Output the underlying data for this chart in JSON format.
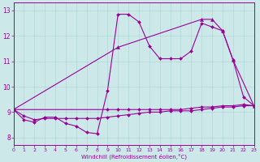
{
  "xlabel": "Windchill (Refroidissement éolien,°C)",
  "xlim": [
    0,
    23
  ],
  "ylim": [
    7.7,
    13.3
  ],
  "yticks": [
    8,
    9,
    10,
    11,
    12,
    13
  ],
  "xticks": [
    0,
    1,
    2,
    3,
    4,
    5,
    6,
    7,
    8,
    9,
    10,
    11,
    12,
    13,
    14,
    15,
    16,
    17,
    18,
    19,
    20,
    21,
    22,
    23
  ],
  "bg_color": "#cce8e8",
  "line_color": "#990099",
  "series1": [
    [
      0,
      9.1
    ],
    [
      1,
      8.7
    ],
    [
      2,
      8.6
    ],
    [
      3,
      8.8
    ],
    [
      4,
      8.8
    ],
    [
      5,
      8.55
    ],
    [
      6,
      8.45
    ],
    [
      7,
      8.2
    ],
    [
      8,
      8.15
    ],
    [
      9,
      9.85
    ],
    [
      10,
      12.85
    ],
    [
      11,
      12.85
    ],
    [
      12,
      12.55
    ],
    [
      13,
      11.6
    ],
    [
      14,
      11.1
    ],
    [
      15,
      11.1
    ],
    [
      16,
      11.1
    ],
    [
      17,
      11.4
    ],
    [
      18,
      12.5
    ],
    [
      19,
      12.35
    ],
    [
      20,
      12.2
    ],
    [
      21,
      11.05
    ],
    [
      22,
      9.6
    ],
    [
      23,
      9.25
    ]
  ],
  "series2": [
    [
      0,
      9.1
    ],
    [
      1,
      8.85
    ],
    [
      2,
      8.7
    ],
    [
      3,
      8.75
    ],
    [
      4,
      8.75
    ],
    [
      5,
      8.75
    ],
    [
      6,
      8.75
    ],
    [
      7,
      8.75
    ],
    [
      8,
      8.75
    ],
    [
      9,
      8.8
    ],
    [
      10,
      8.85
    ],
    [
      11,
      8.9
    ],
    [
      12,
      8.95
    ],
    [
      13,
      9.0
    ],
    [
      14,
      9.0
    ],
    [
      15,
      9.05
    ],
    [
      16,
      9.05
    ],
    [
      17,
      9.05
    ],
    [
      18,
      9.1
    ],
    [
      19,
      9.15
    ],
    [
      20,
      9.2
    ],
    [
      21,
      9.2
    ],
    [
      22,
      9.25
    ],
    [
      23,
      9.25
    ]
  ],
  "series3": [
    [
      0,
      9.1
    ],
    [
      9,
      9.1
    ],
    [
      10,
      9.1
    ],
    [
      11,
      9.1
    ],
    [
      12,
      9.1
    ],
    [
      13,
      9.1
    ],
    [
      14,
      9.1
    ],
    [
      15,
      9.1
    ],
    [
      16,
      9.1
    ],
    [
      17,
      9.15
    ],
    [
      18,
      9.2
    ],
    [
      19,
      9.2
    ],
    [
      20,
      9.25
    ],
    [
      21,
      9.25
    ],
    [
      22,
      9.3
    ],
    [
      23,
      9.25
    ]
  ],
  "series4": [
    [
      0,
      9.1
    ],
    [
      10,
      11.55
    ],
    [
      18,
      12.65
    ],
    [
      19,
      12.65
    ],
    [
      20,
      12.2
    ],
    [
      21,
      11.05
    ],
    [
      23,
      9.25
    ]
  ]
}
